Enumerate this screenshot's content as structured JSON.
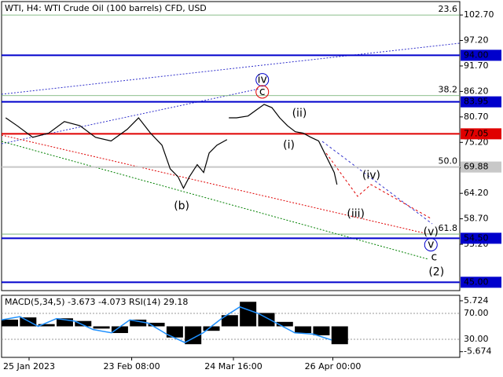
{
  "chart_data": [
    {
      "type": "line",
      "title": "WTI, H4:  WTI Crude Oil (100 barrels) CFD, USD",
      "xlim": [
        0,
        100
      ],
      "xticks": [
        {
          "value": 6,
          "label": "25 Jan 2023"
        },
        {
          "value": 28.4,
          "label": "23 Feb 08:00"
        },
        {
          "value": 50.6,
          "label": "24 Mar 16:00"
        },
        {
          "value": 72.3,
          "label": "26 Apr 00:00"
        }
      ],
      "ylim": [
        43.2,
        105.6
      ],
      "yticks": [
        {
          "value": 102.7,
          "label": "102.70"
        },
        {
          "value": 97.2,
          "label": "97.20"
        },
        {
          "value": 91.7,
          "label": "91.70"
        },
        {
          "value": 86.2,
          "label": "86.20"
        },
        {
          "value": 80.7,
          "label": "80.70"
        },
        {
          "value": 75.2,
          "label": "75.20"
        },
        {
          "value": 69.7,
          "label": "69.70"
        },
        {
          "value": 64.2,
          "label": "64.20"
        },
        {
          "value": 58.7,
          "label": "58.70"
        },
        {
          "value": 53.2,
          "label": "53.20"
        }
      ],
      "series": [
        {
          "name": "WTI",
          "color": "#000000",
          "x": [
            0.9,
            3.4,
            6.8,
            10.3,
            13.7,
            17.1,
            20.5,
            23.9,
            27.4,
            29.9,
            32.5,
            35.0,
            36.8,
            38.5,
            39.7,
            41.0,
            42.7,
            44.1,
            45.3,
            47.0,
            49.2,
            null,
            49.6,
            51.3,
            53.8,
            55.6,
            57.3,
            59.0,
            60.7,
            62.4,
            64.1,
            65.8,
            67.5,
            69.2,
            70.9,
            72.6,
            73.2
          ],
          "values": [
            80.5,
            78.8,
            76.3,
            77.2,
            79.7,
            78.8,
            76.3,
            75.5,
            78.0,
            80.5,
            77.2,
            74.6,
            69.5,
            67.8,
            65.3,
            67.8,
            70.4,
            68.7,
            72.9,
            74.6,
            75.8,
            null,
            80.5,
            80.5,
            80.9,
            82.2,
            83.4,
            82.7,
            80.5,
            78.8,
            77.5,
            77.2,
            76.3,
            75.5,
            72.1,
            68.7,
            66.1
          ]
        }
      ],
      "levels": [
        {
          "value": 94.0,
          "label": "94.00",
          "color": "#0000cc"
        },
        {
          "value": 83.95,
          "label": "83.95",
          "color": "#0000cc"
        },
        {
          "value": 77.05,
          "label": "77.05",
          "color": "#e00000"
        },
        {
          "value": 69.88,
          "label": "69.88",
          "color": "#c8c8c8"
        },
        {
          "value": 54.5,
          "label": "54.50",
          "color": "#0000cc"
        },
        {
          "value": 45.0,
          "label": "45.00",
          "color": "#0000cc"
        }
      ],
      "fib_levels": [
        {
          "value": 102.7,
          "label": "23.6"
        },
        {
          "value": 85.3,
          "label": "38.2"
        },
        {
          "value": 69.88,
          "label": "50.0"
        },
        {
          "value": 55.4,
          "label": "61.8"
        }
      ],
      "annotations": [
        {
          "text": "(b)",
          "x": 39.3,
          "y": 61.4,
          "color": "#e00000"
        },
        {
          "text": "(i)",
          "x": 62.7,
          "y": 74.6,
          "color": "#e00000"
        },
        {
          "text": "(ii)",
          "x": 65.0,
          "y": 81.4,
          "color": "#e00000"
        },
        {
          "text": "(iii)",
          "x": 77.3,
          "y": 59.7,
          "color": "#e00000"
        },
        {
          "text": "(iv)",
          "x": 80.7,
          "y": 68.0,
          "color": "#e00000"
        },
        {
          "text": "(v)",
          "x": 93.7,
          "y": 55.8,
          "color": "#e00000"
        },
        {
          "text": "iv",
          "x": 56.9,
          "y": 88.7,
          "color": "#0000cc",
          "circle": true
        },
        {
          "text": "c",
          "x": 56.9,
          "y": 86.1,
          "color": "#e00000",
          "circle": true
        },
        {
          "text": "v",
          "x": 93.7,
          "y": 53.1,
          "color": "#0000cc",
          "circle": true
        },
        {
          "text": "c",
          "x": 94.4,
          "y": 50.4,
          "color": "#e00000"
        },
        {
          "text": "(2)",
          "x": 94.9,
          "y": 47.2,
          "color": "#008000"
        }
      ]
    },
    {
      "type": "bar",
      "title": "MACD(5,34,5) -3.673 -4.073 RSI(14) 29.18",
      "xlim": [
        0,
        100
      ],
      "ylim": [
        -6.95,
        6.95
      ],
      "yticks": [
        {
          "value": 5.724,
          "label": "5.724"
        },
        {
          "value": -5.674,
          "label": "-5.674"
        }
      ],
      "y2lim": [
        2.1,
        97.9
      ],
      "y2ticks": [
        {
          "value": 70,
          "label": "70.00"
        },
        {
          "value": 30,
          "label": "30.00"
        }
      ],
      "x": [
        0,
        4,
        8,
        12,
        16,
        20,
        24,
        28,
        32,
        36,
        40,
        44,
        48,
        52,
        56,
        60,
        64,
        68,
        72
      ],
      "series": [
        {
          "name": "MACD",
          "color": "#000000",
          "values": [
            1.5,
            2.0,
            0.5,
            1.8,
            1.2,
            -0.5,
            -1.5,
            1.5,
            0.8,
            -2.5,
            -4.0,
            -1.0,
            2.5,
            5.5,
            3.0,
            1.0,
            -1.5,
            -2.0,
            -4.0
          ]
        },
        {
          "name": "RSI",
          "color": "#1e90ff",
          "axis": "y2",
          "values": [
            60,
            65,
            50,
            62,
            58,
            45,
            40,
            60,
            55,
            38,
            25,
            40,
            62,
            80,
            70,
            55,
            40,
            38,
            29
          ]
        }
      ]
    }
  ]
}
